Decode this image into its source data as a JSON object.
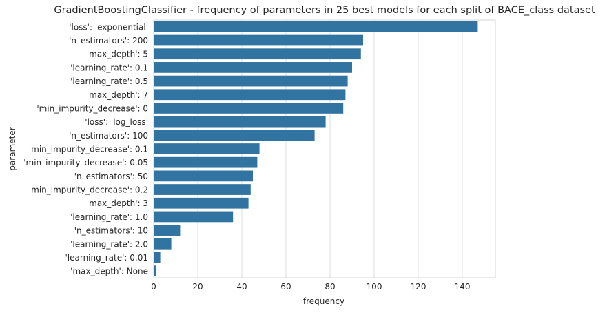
{
  "chart_data": {
    "type": "bar",
    "orientation": "horizontal",
    "title": "GradientBoostingClassifier - frequency of parameters in 25 best models for each split of BACE_class dataset",
    "xlabel": "frequency",
    "ylabel": "parameter",
    "xlim": [
      0,
      155
    ],
    "xticks": [
      0,
      20,
      40,
      60,
      80,
      100,
      120,
      140
    ],
    "grid": "vertical",
    "bar_color": "#3274a1",
    "categories": [
      "'loss': 'exponential'",
      "'n_estimators': 200",
      "'max_depth': 5",
      "'learning_rate': 0.1",
      "'learning_rate': 0.5",
      "'max_depth': 7",
      "'min_impurity_decrease': 0",
      "'loss': 'log_loss'",
      "'n_estimators': 100",
      "'min_impurity_decrease': 0.1",
      "'min_impurity_decrease': 0.05",
      "'n_estimators': 50",
      "'min_impurity_decrease': 0.2",
      "'max_depth': 3",
      "'learning_rate': 1.0",
      "'n_estimators': 10",
      "'learning_rate': 2.0",
      "'learning_rate': 0.01",
      "'max_depth': None"
    ],
    "values": [
      147,
      95,
      94,
      90,
      88,
      87,
      86,
      78,
      73,
      48,
      47,
      45,
      44,
      43,
      36,
      12,
      8,
      3,
      1
    ]
  }
}
